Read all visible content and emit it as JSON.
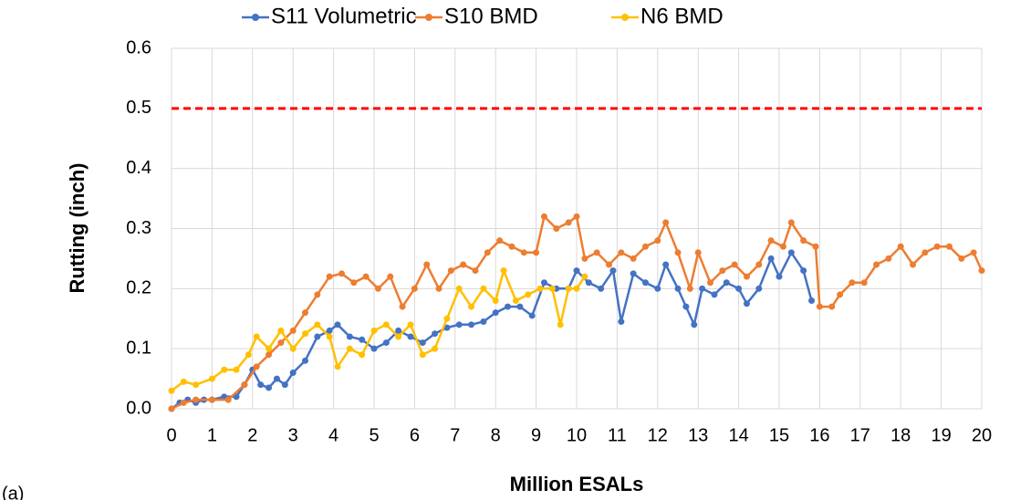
{
  "chart_data": {
    "type": "line",
    "x_label": "Million ESALs",
    "y_label": "Rutting (inch)",
    "annotation": "(a)",
    "xlim": [
      0,
      20
    ],
    "xticks": [
      0,
      1,
      2,
      3,
      4,
      5,
      6,
      7,
      8,
      9,
      10,
      11,
      12,
      13,
      14,
      15,
      16,
      17,
      18,
      19,
      20
    ],
    "ylim": [
      0,
      0.6
    ],
    "yticks": [
      {
        "value": 0,
        "label": "0.0"
      },
      0.1,
      0.2,
      0.3,
      0.4,
      0.5,
      0.6
    ],
    "grid": true,
    "reference_line": {
      "value": 0.5,
      "color": "#ff0000"
    },
    "series": [
      {
        "name": "S11 Volumetric",
        "color": "#4472c4",
        "x": [
          0,
          0.2,
          0.4,
          0.6,
          0.8,
          1.0,
          1.3,
          1.6,
          1.8,
          2.0,
          2.2,
          2.4,
          2.6,
          2.8,
          3.0,
          3.3,
          3.6,
          3.9,
          4.1,
          4.4,
          4.7,
          5.0,
          5.3,
          5.6,
          5.9,
          6.2,
          6.5,
          6.8,
          7.1,
          7.4,
          7.7,
          8.0,
          8.3,
          8.6,
          8.9,
          9.2,
          9.5,
          9.8,
          10.0,
          10.3,
          10.6,
          10.9,
          11.1,
          11.4,
          11.7,
          12.0,
          12.2,
          12.5,
          12.7,
          12.9,
          13.1,
          13.4,
          13.7,
          14.0,
          14.2,
          14.5,
          14.8,
          15.0,
          15.3,
          15.6,
          15.8
        ],
        "values": [
          0.0,
          0.01,
          0.015,
          0.01,
          0.015,
          0.015,
          0.02,
          0.02,
          0.04,
          0.065,
          0.04,
          0.035,
          0.05,
          0.04,
          0.06,
          0.08,
          0.12,
          0.13,
          0.14,
          0.12,
          0.115,
          0.1,
          0.11,
          0.13,
          0.12,
          0.11,
          0.125,
          0.135,
          0.14,
          0.14,
          0.145,
          0.16,
          0.17,
          0.17,
          0.155,
          0.21,
          0.2,
          0.2,
          0.23,
          0.21,
          0.2,
          0.23,
          0.145,
          0.225,
          0.21,
          0.2,
          0.24,
          0.2,
          0.17,
          0.14,
          0.2,
          0.19,
          0.21,
          0.2,
          0.175,
          0.2,
          0.25,
          0.22,
          0.26,
          0.23,
          0.18
        ]
      },
      {
        "name": "S10 BMD",
        "color": "#ed7d31",
        "x": [
          0,
          0.3,
          0.6,
          1.0,
          1.4,
          1.8,
          2.1,
          2.4,
          2.7,
          3.0,
          3.3,
          3.6,
          3.9,
          4.2,
          4.5,
          4.8,
          5.1,
          5.4,
          5.7,
          6.0,
          6.3,
          6.6,
          6.9,
          7.2,
          7.5,
          7.8,
          8.1,
          8.4,
          8.7,
          9.0,
          9.2,
          9.5,
          9.8,
          10.0,
          10.2,
          10.5,
          10.8,
          11.1,
          11.4,
          11.7,
          12.0,
          12.2,
          12.5,
          12.8,
          13.0,
          13.3,
          13.6,
          13.9,
          14.2,
          14.5,
          14.8,
          15.1,
          15.3,
          15.6,
          15.9,
          16.0,
          16.3,
          16.5,
          16.8,
          17.1,
          17.4,
          17.7,
          18.0,
          18.3,
          18.6,
          18.9,
          19.2,
          19.5,
          19.8,
          20.0
        ],
        "values": [
          0.0,
          0.01,
          0.015,
          0.015,
          0.015,
          0.04,
          0.07,
          0.09,
          0.11,
          0.13,
          0.16,
          0.19,
          0.22,
          0.225,
          0.21,
          0.22,
          0.2,
          0.22,
          0.17,
          0.2,
          0.24,
          0.2,
          0.23,
          0.24,
          0.23,
          0.26,
          0.28,
          0.27,
          0.26,
          0.26,
          0.32,
          0.3,
          0.31,
          0.32,
          0.25,
          0.26,
          0.24,
          0.26,
          0.25,
          0.27,
          0.28,
          0.31,
          0.26,
          0.2,
          0.26,
          0.21,
          0.23,
          0.24,
          0.22,
          0.24,
          0.28,
          0.27,
          0.31,
          0.28,
          0.27,
          0.17,
          0.17,
          0.19,
          0.21,
          0.21,
          0.24,
          0.25,
          0.27,
          0.24,
          0.26,
          0.27,
          0.27,
          0.25,
          0.26,
          0.23
        ]
      },
      {
        "name": "N6 BMD",
        "color": "#ffc000",
        "x": [
          0,
          0.3,
          0.6,
          1.0,
          1.3,
          1.6,
          1.9,
          2.1,
          2.4,
          2.7,
          3.0,
          3.3,
          3.6,
          3.9,
          4.1,
          4.4,
          4.7,
          5.0,
          5.3,
          5.6,
          5.9,
          6.2,
          6.5,
          6.8,
          7.1,
          7.4,
          7.7,
          8.0,
          8.2,
          8.5,
          8.8,
          9.1,
          9.4,
          9.6,
          9.8,
          10.0,
          10.2
        ],
        "values": [
          0.03,
          0.045,
          0.04,
          0.05,
          0.065,
          0.065,
          0.09,
          0.12,
          0.1,
          0.13,
          0.1,
          0.125,
          0.14,
          0.12,
          0.07,
          0.1,
          0.09,
          0.13,
          0.14,
          0.12,
          0.14,
          0.09,
          0.1,
          0.15,
          0.2,
          0.17,
          0.2,
          0.18,
          0.23,
          0.18,
          0.19,
          0.2,
          0.2,
          0.14,
          0.2,
          0.2,
          0.22
        ]
      }
    ]
  }
}
